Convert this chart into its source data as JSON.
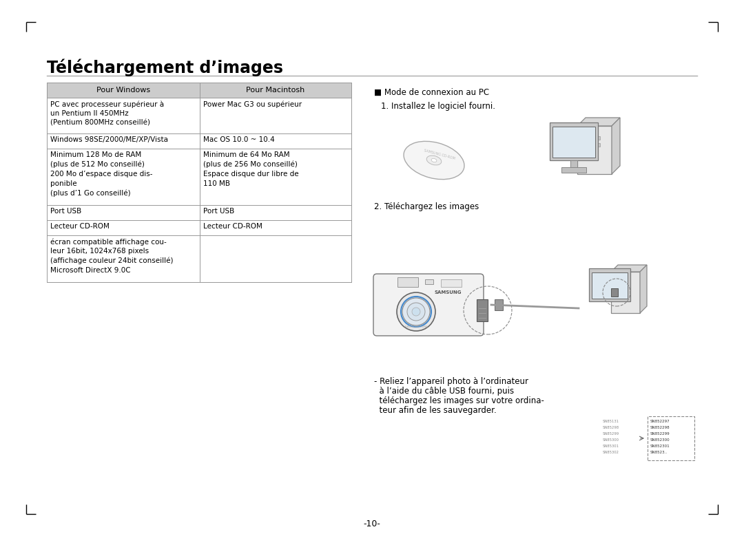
{
  "title": "Téléchargement d’images",
  "bg_color": "#ffffff",
  "page_number": "-10-",
  "table": {
    "header_bg": "#cccccc",
    "header_text_color": "#000000",
    "col1_header": "Pour Windows",
    "col2_header": "Pour Macintosh",
    "rows": [
      {
        "col1": "PC avec processeur supérieur à\nun Pentium II 450MHz\n(Pentium 800MHz conseillé)",
        "col2": "Power Mac G3 ou supérieur"
      },
      {
        "col1": "Windows 98SE/2000/ME/XP/Vista",
        "col2": "Mac OS 10.0 ~ 10.4"
      },
      {
        "col1": "Minimum 128 Mo de RAM\n(plus de 512 Mo conseillé)\n200 Mo d’espace disque dis-\nponible\n(plus d’1 Go conseillé)",
        "col2": "Minimum de 64 Mo RAM\n(plus de 256 Mo conseillé)\nEspace disque dur libre de\n110 MB"
      },
      {
        "col1": "Port USB",
        "col2": "Port USB"
      },
      {
        "col1": "Lecteur CD-ROM",
        "col2": "Lecteur CD-ROM"
      },
      {
        "col1": "écran compatible affichage cou-\nleur 16bit, 1024x768 pixels\n(affichage couleur 24bit conseillé)\nMicrosoft DirectX 9.0C",
        "col2": ""
      }
    ],
    "border_color": "#999999",
    "text_color": "#000000",
    "font_size": 7.5
  },
  "right_section": {
    "mode_title": "■ Mode de connexion au PC",
    "step1": "1. Installez le logiciel fourni.",
    "step2": "2. Téléchargez les images",
    "note_line1": "- Reliez l’appareil photo à l’ordinateur",
    "note_line2": "  à l’aide du câble USB fourni, puis",
    "note_line3": "  téléchargez les images sur votre ordina-",
    "note_line4": "  teur afin de les sauvegarder.",
    "text_color": "#000000",
    "font_size": 8.5
  },
  "sn_left": [
    "SN85131",
    "SN85298",
    "SN85299",
    "SN85300",
    "SN85301",
    "SN85302"
  ],
  "sn_right": [
    "SN852297",
    "SN852298",
    "SN852299",
    "SN852300",
    "SN852301",
    "SN8523.."
  ]
}
